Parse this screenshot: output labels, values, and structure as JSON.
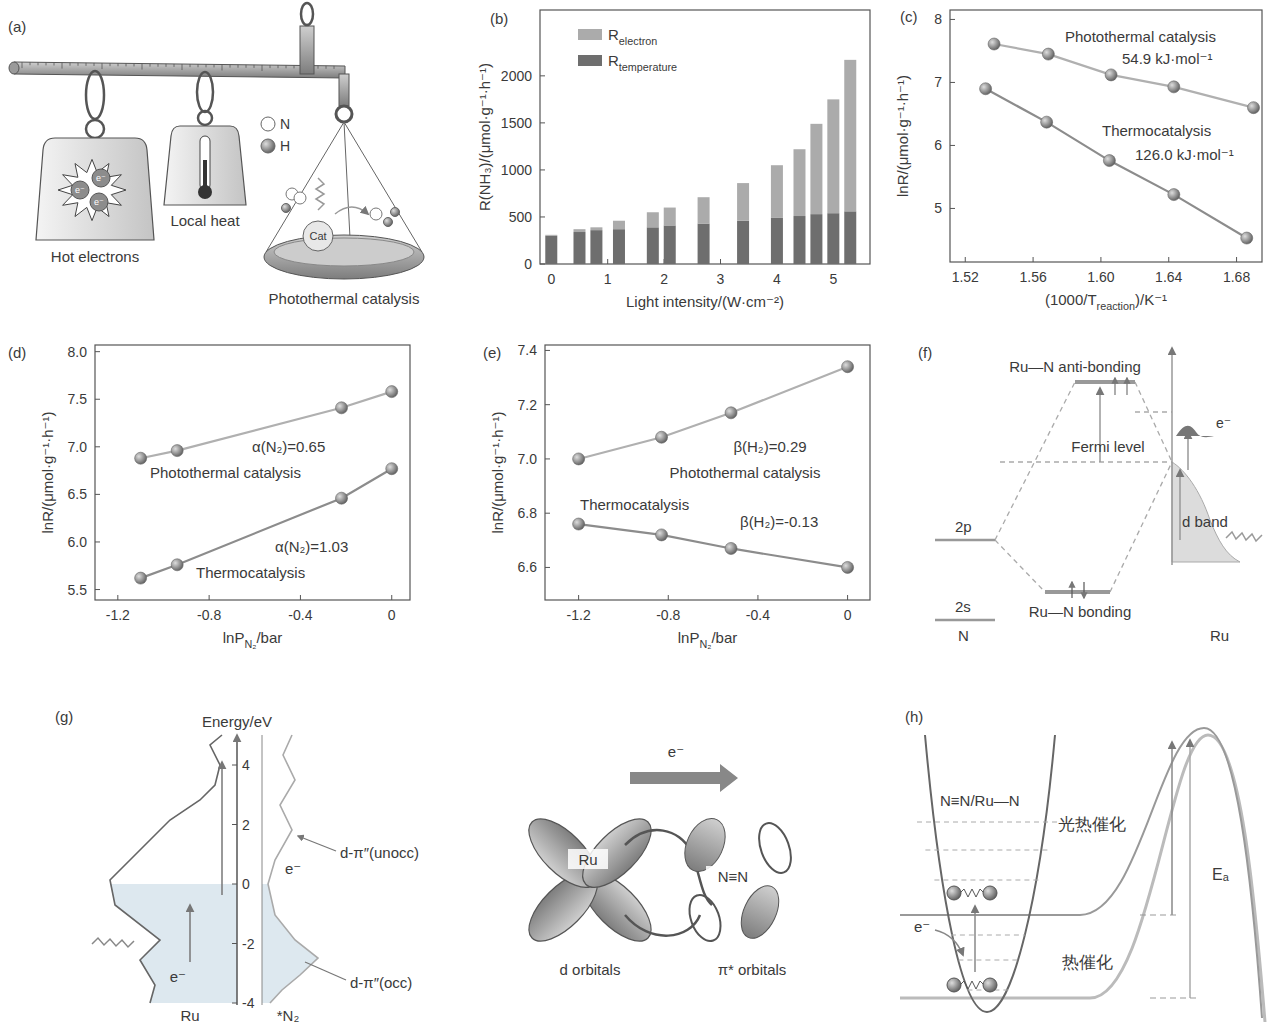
{
  "chart_data": [
    {
      "type": "bar",
      "stacked": true,
      "title": "(b)",
      "grid": false,
      "legend": "upper left",
      "x_label": "Light intensity/(W·cm⁻²)",
      "y_label": "R(NH₃)/(μmol·g⁻¹·h⁻¹)",
      "x": [
        0,
        0.5,
        0.8,
        1.2,
        1.8,
        2.1,
        2.7,
        3.4,
        4.0,
        4.4,
        4.7,
        5.0,
        5.3
      ],
      "xlim": [
        -0.2,
        5.65
      ],
      "xticks": [
        0,
        1,
        2,
        3,
        4,
        5
      ],
      "ylim": [
        0,
        2700
      ],
      "yticks": [
        0,
        500,
        1000,
        1500,
        2000
      ],
      "series": [
        {
          "name": [
            "R",
            {
              "sub": "temperature"
            }
          ],
          "color": "#6e6e6e",
          "values": [
            300,
            340,
            360,
            370,
            390,
            410,
            430,
            460,
            490,
            510,
            530,
            540,
            560
          ]
        },
        {
          "name": [
            "R",
            {
              "sub": "electron"
            }
          ],
          "color": "#ababab",
          "values": [
            10,
            30,
            30,
            90,
            160,
            190,
            280,
            400,
            560,
            710,
            960,
            1210,
            1610
          ]
        }
      ]
    },
    {
      "type": "line",
      "marker": "circle",
      "title": "(c)",
      "grid": false,
      "x_label": [
        "(1000/T",
        {
          "sub": "reaction"
        },
        ")/K⁻¹"
      ],
      "y_label": "lnR/(μmol·g⁻¹·h⁻¹)",
      "xlim": [
        1.511,
        1.695
      ],
      "xticks": [
        1.52,
        1.56,
        {
          "value": 1.6,
          "label": "1.60"
        },
        1.64,
        1.68
      ],
      "ylim": [
        4.15,
        8.15
      ],
      "yticks": [
        5,
        6,
        7,
        8
      ],
      "series": [
        {
          "name": "Photothermal catalysis",
          "color": "#b0b0b0",
          "line_style": "solid",
          "x": [
            1.537,
            1.569,
            1.606,
            1.643,
            1.69
          ],
          "values": [
            7.61,
            7.45,
            7.12,
            6.93,
            6.6
          ]
        },
        {
          "name": "Thermocatalysis",
          "color": "#8c8c8c",
          "line_style": "solid",
          "x": [
            1.532,
            1.568,
            1.605,
            1.643,
            1.686
          ],
          "values": [
            6.9,
            6.37,
            5.76,
            5.22,
            4.53
          ]
        }
      ],
      "annotations": [
        "54.9 kJ·mol⁻¹",
        "126.0 kJ·mol⁻¹"
      ]
    },
    {
      "type": "line",
      "marker": "circle",
      "title": "(d)",
      "grid": false,
      "x_label": [
        "lnP",
        {
          "sub": "N₂"
        },
        "/bar"
      ],
      "y_label": "lnR/(μmol·g⁻¹·h⁻¹)",
      "xlim": [
        -1.3,
        0.08
      ],
      "xticks": [
        -1.2,
        -0.8,
        -0.4,
        0
      ],
      "ylim": [
        5.39,
        8.07
      ],
      "yticks": [
        5.5,
        {
          "value": 6,
          "label": "6.0"
        },
        6.5,
        {
          "value": 7,
          "label": "7.0"
        },
        7.5,
        {
          "value": 8,
          "label": "8.0"
        }
      ],
      "series": [
        {
          "name": "Photothermal catalysis",
          "color": "#b0b0b0",
          "line_style": "solid",
          "x": [
            -1.1,
            -0.94,
            -0.22,
            0
          ],
          "values": [
            6.88,
            6.96,
            7.41,
            7.58
          ]
        },
        {
          "name": "Thermocatalysis",
          "color": "#8c8c8c",
          "line_style": "solid",
          "x": [
            -1.1,
            -0.94,
            -0.22,
            0
          ],
          "values": [
            5.62,
            5.76,
            6.46,
            6.77
          ]
        }
      ],
      "annotations": [
        "α(N₂)=0.65",
        "α(N₂)=1.03"
      ]
    },
    {
      "type": "line",
      "marker": "circle",
      "title": "(e)",
      "grid": false,
      "x_label": [
        "lnP",
        {
          "sub": "N₂"
        },
        "/bar"
      ],
      "y_label": "lnR/(μmol·g⁻¹·h⁻¹)",
      "xlim": [
        -1.35,
        0.1
      ],
      "xticks": [
        -1.2,
        -0.8,
        -0.4,
        0
      ],
      "ylim": [
        6.48,
        7.42
      ],
      "yticks": [
        6.6,
        6.8,
        {
          "value": 7,
          "label": "7.0"
        },
        7.2,
        7.4
      ],
      "series": [
        {
          "name": "Photothermal catalysis",
          "color": "#b0b0b0",
          "line_style": "solid",
          "x": [
            -1.2,
            -0.83,
            -0.52,
            0
          ],
          "values": [
            7.0,
            7.08,
            7.17,
            7.34
          ]
        },
        {
          "name": "Thermocatalysis",
          "color": "#8c8c8c",
          "line_style": "solid",
          "x": [
            -1.2,
            -0.83,
            -0.52,
            0
          ],
          "values": [
            6.76,
            6.72,
            6.67,
            6.6
          ]
        }
      ],
      "annotations": [
        "β(H₂)=0.29",
        "β(H₂)=-0.13"
      ]
    }
  ],
  "diagrams": {
    "a": {
      "title": "(a)",
      "atoms": [
        "N",
        "H"
      ],
      "weights": [
        "Hot electrons",
        "Local heat",
        "Photothermal catalysis"
      ],
      "catalyst": "Cat",
      "electron": "e⁻"
    },
    "f": {
      "title": "(f)",
      "antibonding": "Ru—N anti-bonding",
      "fermi": "Fermi level",
      "orbitals": [
        "2p",
        "2s"
      ],
      "atom": "N",
      "bonding": "Ru—N bonding",
      "band": "d band",
      "metal": "Ru",
      "electron": "e⁻"
    },
    "g": {
      "title": "(g)",
      "axis_label": "Energy/eV",
      "ticks": [
        4,
        2,
        0,
        -2,
        -4
      ],
      "states": [
        "d-π″(unocc)",
        "d-π″(occ)"
      ],
      "dos_labels": [
        "Ru",
        "*N₂"
      ],
      "electron": "e⁻",
      "orbital_atoms": [
        "Ru",
        "N≡N"
      ],
      "orbital_labels": [
        "d orbitals",
        "π* orbitals"
      ]
    },
    "h": {
      "title": "(h)",
      "species": "N≡N/Ru—N",
      "photothermal": "光热催化",
      "thermal": "热催化",
      "barrier": "Eₐ",
      "electron": "e⁻"
    }
  }
}
